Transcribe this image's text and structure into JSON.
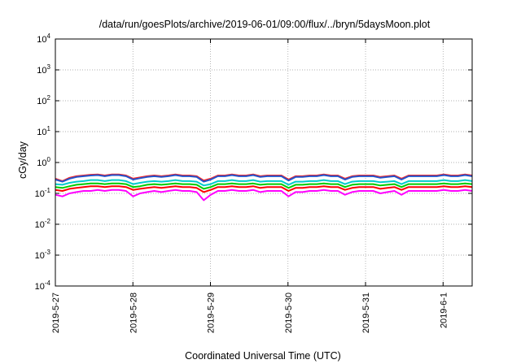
{
  "chart_data": {
    "type": "line",
    "title": "/data/run/goesPlots/archive/2019-06-01/09:00/flux/../bryn/5daysMoon.plot",
    "xlabel": "Coordinated Universal Time (UTC)",
    "ylabel": "cGy/day",
    "y_scale": "log",
    "ylim": [
      0.0001,
      10000
    ],
    "xlim": [
      "2019-05-27",
      "2019-06-01T09:00"
    ],
    "grid": true,
    "legend": "none",
    "x_ticks": [
      "2019-5-27",
      "2019-5-28",
      "2019-5-29",
      "2019-5-30",
      "2019-5-31",
      "2019-6-1"
    ],
    "y_ticks": [
      {
        "value": 0.0001,
        "base": "10",
        "exp": "-4"
      },
      {
        "value": 0.001,
        "base": "10",
        "exp": "-3"
      },
      {
        "value": 0.01,
        "base": "10",
        "exp": "-2"
      },
      {
        "value": 0.1,
        "base": "10",
        "exp": "-1"
      },
      {
        "value": 1,
        "base": "10",
        "exp": "0"
      },
      {
        "value": 10,
        "base": "10",
        "exp": "1"
      },
      {
        "value": 100,
        "base": "10",
        "exp": "2"
      },
      {
        "value": 1000,
        "base": "10",
        "exp": "3"
      },
      {
        "value": 10000,
        "base": "10",
        "exp": "4"
      }
    ],
    "series": [
      {
        "color": "#ff00ff",
        "values": [
          0.09,
          0.08,
          0.1,
          0.11,
          0.12,
          0.12,
          0.13,
          0.12,
          0.13,
          0.13,
          0.12,
          0.08,
          0.1,
          0.11,
          0.12,
          0.11,
          0.12,
          0.13,
          0.12,
          0.12,
          0.11,
          0.06,
          0.09,
          0.12,
          0.12,
          0.13,
          0.12,
          0.12,
          0.13,
          0.11,
          0.12,
          0.12,
          0.12,
          0.08,
          0.11,
          0.11,
          0.12,
          0.12,
          0.13,
          0.12,
          0.12,
          0.09,
          0.11,
          0.12,
          0.12,
          0.12,
          0.1,
          0.11,
          0.12,
          0.09,
          0.12,
          0.12,
          0.12,
          0.12,
          0.12,
          0.13,
          0.12,
          0.12,
          0.13,
          0.12
        ]
      },
      {
        "color": "#ff0000",
        "values": [
          0.13,
          0.12,
          0.14,
          0.15,
          0.16,
          0.17,
          0.17,
          0.16,
          0.17,
          0.17,
          0.16,
          0.13,
          0.14,
          0.15,
          0.16,
          0.15,
          0.16,
          0.17,
          0.16,
          0.16,
          0.15,
          0.11,
          0.13,
          0.16,
          0.16,
          0.17,
          0.16,
          0.16,
          0.17,
          0.15,
          0.16,
          0.16,
          0.16,
          0.12,
          0.15,
          0.15,
          0.16,
          0.16,
          0.17,
          0.16,
          0.16,
          0.13,
          0.15,
          0.16,
          0.16,
          0.16,
          0.14,
          0.15,
          0.16,
          0.13,
          0.16,
          0.16,
          0.16,
          0.16,
          0.16,
          0.17,
          0.16,
          0.16,
          0.17,
          0.16
        ]
      },
      {
        "color": "#00cc00",
        "values": [
          0.16,
          0.15,
          0.17,
          0.19,
          0.2,
          0.21,
          0.21,
          0.2,
          0.21,
          0.21,
          0.2,
          0.16,
          0.17,
          0.19,
          0.2,
          0.19,
          0.2,
          0.21,
          0.2,
          0.2,
          0.19,
          0.14,
          0.16,
          0.2,
          0.2,
          0.21,
          0.2,
          0.2,
          0.21,
          0.19,
          0.2,
          0.2,
          0.2,
          0.15,
          0.19,
          0.19,
          0.2,
          0.2,
          0.21,
          0.2,
          0.2,
          0.16,
          0.19,
          0.2,
          0.2,
          0.2,
          0.18,
          0.19,
          0.2,
          0.16,
          0.2,
          0.2,
          0.2,
          0.2,
          0.2,
          0.21,
          0.2,
          0.2,
          0.21,
          0.2
        ]
      },
      {
        "color": "#00cccc",
        "values": [
          0.2,
          0.19,
          0.22,
          0.24,
          0.25,
          0.27,
          0.27,
          0.25,
          0.27,
          0.27,
          0.25,
          0.2,
          0.22,
          0.24,
          0.25,
          0.24,
          0.25,
          0.27,
          0.25,
          0.25,
          0.24,
          0.18,
          0.2,
          0.25,
          0.25,
          0.27,
          0.25,
          0.25,
          0.27,
          0.24,
          0.25,
          0.25,
          0.25,
          0.19,
          0.24,
          0.24,
          0.25,
          0.25,
          0.27,
          0.25,
          0.25,
          0.2,
          0.24,
          0.25,
          0.25,
          0.25,
          0.23,
          0.24,
          0.25,
          0.2,
          0.25,
          0.25,
          0.25,
          0.25,
          0.25,
          0.27,
          0.25,
          0.25,
          0.27,
          0.25
        ]
      },
      {
        "color": "#ff2020",
        "values": [
          0.3,
          0.25,
          0.32,
          0.36,
          0.38,
          0.4,
          0.41,
          0.38,
          0.41,
          0.41,
          0.38,
          0.3,
          0.33,
          0.36,
          0.38,
          0.36,
          0.38,
          0.41,
          0.38,
          0.38,
          0.36,
          0.26,
          0.3,
          0.38,
          0.38,
          0.41,
          0.38,
          0.38,
          0.41,
          0.36,
          0.38,
          0.38,
          0.38,
          0.28,
          0.36,
          0.36,
          0.38,
          0.38,
          0.41,
          0.38,
          0.38,
          0.3,
          0.36,
          0.38,
          0.38,
          0.38,
          0.34,
          0.36,
          0.38,
          0.3,
          0.38,
          0.38,
          0.38,
          0.38,
          0.38,
          0.41,
          0.38,
          0.38,
          0.41,
          0.38
        ]
      },
      {
        "color": "#2255cc",
        "values": [
          0.28,
          0.24,
          0.3,
          0.34,
          0.36,
          0.38,
          0.39,
          0.36,
          0.39,
          0.39,
          0.36,
          0.28,
          0.31,
          0.34,
          0.36,
          0.34,
          0.36,
          0.39,
          0.36,
          0.36,
          0.34,
          0.24,
          0.28,
          0.36,
          0.36,
          0.39,
          0.36,
          0.36,
          0.39,
          0.34,
          0.36,
          0.36,
          0.36,
          0.26,
          0.34,
          0.34,
          0.36,
          0.36,
          0.39,
          0.36,
          0.36,
          0.28,
          0.34,
          0.36,
          0.36,
          0.36,
          0.32,
          0.34,
          0.36,
          0.28,
          0.36,
          0.36,
          0.36,
          0.36,
          0.36,
          0.39,
          0.36,
          0.36,
          0.39,
          0.36
        ]
      }
    ]
  }
}
